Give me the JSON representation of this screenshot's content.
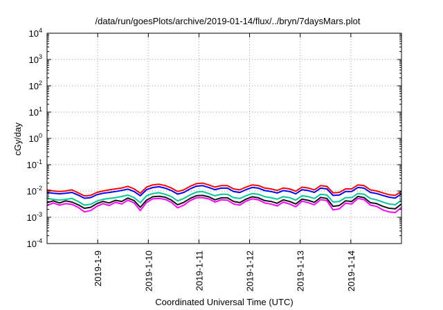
{
  "chart_data": {
    "type": "line",
    "title": "/data/run/goesPlots/archive/2019-01-14/flux/../bryn/7daysMars.plot",
    "xlabel": "Coordinated Universal Time (UTC)",
    "ylabel": "cGy/day",
    "yscale": "log",
    "ylim_exponent": [
      -4,
      4
    ],
    "y_ticks": [
      {
        "base": "10",
        "exp": "-4"
      },
      {
        "base": "10",
        "exp": "-3"
      },
      {
        "base": "10",
        "exp": "-2"
      },
      {
        "base": "10",
        "exp": "-1"
      },
      {
        "base": "10",
        "exp": "0"
      },
      {
        "base": "10",
        "exp": "1"
      },
      {
        "base": "10",
        "exp": "2"
      },
      {
        "base": "10",
        "exp": "3"
      },
      {
        "base": "10",
        "exp": "4"
      }
    ],
    "x_range_days": [
      "2019-01-08",
      "2019-01-15"
    ],
    "x_ticks": [
      "2019-1-9",
      "2019-1-10",
      "2019-1-11",
      "2019-1-12",
      "2019-1-13",
      "2019-1-14"
    ],
    "grid": true,
    "legend": "none",
    "series": [
      {
        "color": "#ff0000",
        "values": [
          0.011,
          0.01,
          0.0095,
          0.01,
          0.011,
          0.0085,
          0.0065,
          0.0068,
          0.0088,
          0.01,
          0.011,
          0.012,
          0.013,
          0.015,
          0.012,
          0.0082,
          0.014,
          0.017,
          0.018,
          0.016,
          0.013,
          0.0095,
          0.011,
          0.015,
          0.019,
          0.02,
          0.017,
          0.014,
          0.016,
          0.016,
          0.012,
          0.011,
          0.014,
          0.017,
          0.016,
          0.013,
          0.012,
          0.0105,
          0.013,
          0.012,
          0.0098,
          0.014,
          0.013,
          0.011,
          0.016,
          0.015,
          0.0085,
          0.0088,
          0.012,
          0.012,
          0.017,
          0.016,
          0.011,
          0.01,
          0.0085,
          0.0072,
          0.0068,
          0.0098
        ]
      },
      {
        "color": "#0000ff",
        "values": [
          0.0088,
          0.0082,
          0.0078,
          0.0082,
          0.0088,
          0.007,
          0.0053,
          0.0056,
          0.0072,
          0.0082,
          0.0088,
          0.0095,
          0.0105,
          0.0118,
          0.0095,
          0.0066,
          0.0112,
          0.0135,
          0.0145,
          0.0128,
          0.0104,
          0.0076,
          0.0088,
          0.012,
          0.0152,
          0.016,
          0.0136,
          0.0112,
          0.0128,
          0.0128,
          0.0096,
          0.0088,
          0.0112,
          0.0136,
          0.0128,
          0.0104,
          0.0096,
          0.0084,
          0.0104,
          0.0096,
          0.0078,
          0.0112,
          0.0104,
          0.0088,
          0.0128,
          0.012,
          0.0068,
          0.007,
          0.0096,
          0.0096,
          0.0136,
          0.0128,
          0.0088,
          0.008,
          0.0068,
          0.0058,
          0.0054,
          0.0078
        ]
      },
      {
        "color": "#00c896",
        "values": [
          0.0052,
          0.0048,
          0.0045,
          0.0048,
          0.0052,
          0.004,
          0.0029,
          0.0031,
          0.0041,
          0.0048,
          0.0052,
          0.0056,
          0.0062,
          0.007,
          0.0056,
          0.0036,
          0.0066,
          0.008,
          0.0086,
          0.0075,
          0.0061,
          0.0042,
          0.0052,
          0.0071,
          0.009,
          0.0095,
          0.008,
          0.0066,
          0.0075,
          0.0075,
          0.0056,
          0.0052,
          0.0066,
          0.008,
          0.0075,
          0.0061,
          0.0056,
          0.0049,
          0.0061,
          0.0056,
          0.0045,
          0.0066,
          0.0061,
          0.0052,
          0.0075,
          0.0071,
          0.0038,
          0.004,
          0.0056,
          0.0056,
          0.008,
          0.0075,
          0.0052,
          0.0046,
          0.0038,
          0.0032,
          0.003,
          0.0045
        ]
      },
      {
        "color": "#111111",
        "values": [
          0.0036,
          0.0042,
          0.0035,
          0.0042,
          0.0038,
          0.003,
          0.0022,
          0.0024,
          0.0033,
          0.004,
          0.0035,
          0.0044,
          0.004,
          0.0054,
          0.0043,
          0.0024,
          0.0045,
          0.006,
          0.0063,
          0.0058,
          0.0045,
          0.003,
          0.0037,
          0.0052,
          0.0066,
          0.0068,
          0.006,
          0.0046,
          0.0055,
          0.0055,
          0.004,
          0.0036,
          0.0049,
          0.006,
          0.0055,
          0.0043,
          0.004,
          0.0034,
          0.0046,
          0.004,
          0.0032,
          0.0049,
          0.0044,
          0.0037,
          0.0057,
          0.0052,
          0.0026,
          0.0028,
          0.0042,
          0.004,
          0.0062,
          0.0056,
          0.0036,
          0.0033,
          0.0026,
          0.0022,
          0.0021,
          0.0032
        ]
      },
      {
        "color": "#ff00ff",
        "values": [
          0.0028,
          0.0035,
          0.0029,
          0.0033,
          0.0031,
          0.0024,
          0.0016,
          0.0018,
          0.0026,
          0.0033,
          0.0028,
          0.0037,
          0.0032,
          0.0045,
          0.0035,
          0.0018,
          0.0037,
          0.005,
          0.0052,
          0.0048,
          0.0037,
          0.0023,
          0.0029,
          0.0043,
          0.0055,
          0.0056,
          0.005,
          0.0038,
          0.0046,
          0.0045,
          0.0032,
          0.0029,
          0.0041,
          0.005,
          0.0046,
          0.0035,
          0.0032,
          0.0027,
          0.0038,
          0.0032,
          0.0025,
          0.0041,
          0.0036,
          0.003,
          0.0047,
          0.0043,
          0.0019,
          0.0021,
          0.0034,
          0.0032,
          0.0052,
          0.0047,
          0.0029,
          0.0026,
          0.0019,
          0.0016,
          0.0015,
          0.0024
        ]
      }
    ]
  }
}
